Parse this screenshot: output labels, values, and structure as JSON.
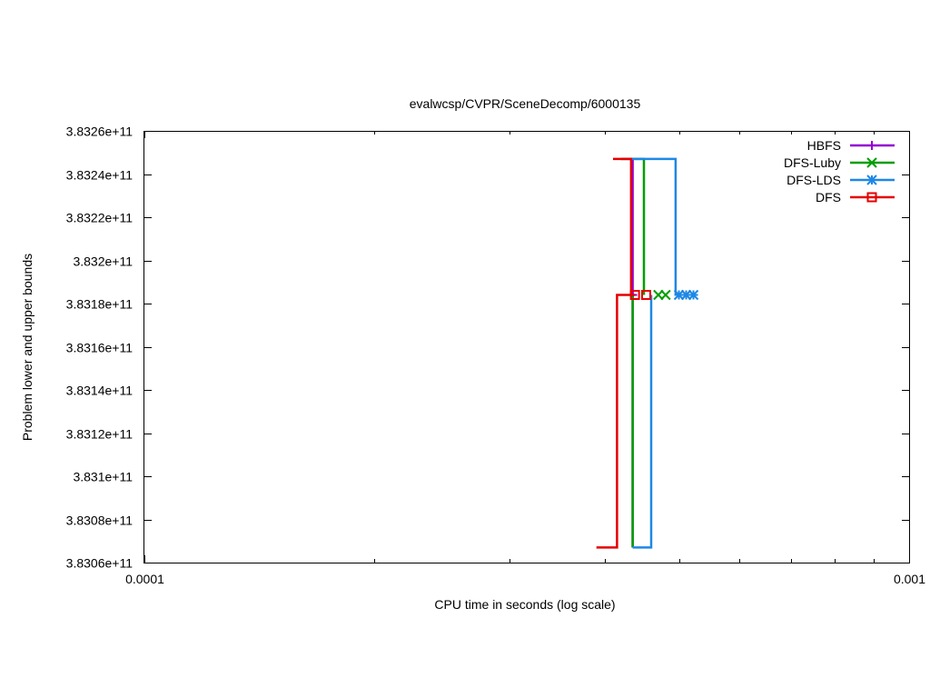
{
  "chart_data": {
    "type": "line",
    "title": "evalwcsp/CVPR/SceneDecomp/6000135",
    "xlabel": "CPU time in seconds (log scale)",
    "ylabel": "Problem lower and upper bounds",
    "x_scale": "log",
    "xlim": [
      0.0001,
      0.001
    ],
    "ylim": [
      383060000000,
      383260000000
    ],
    "x_ticks": [
      {
        "value": 0.0001,
        "label": "0.0001"
      },
      {
        "value": 0.001,
        "label": "0.001"
      }
    ],
    "y_ticks": [
      {
        "value": 383060000000,
        "label": "3.8306e+11"
      },
      {
        "value": 383080000000,
        "label": "3.8308e+11"
      },
      {
        "value": 383100000000,
        "label": "3.831e+11"
      },
      {
        "value": 383120000000,
        "label": "3.8312e+11"
      },
      {
        "value": 383140000000,
        "label": "3.8314e+11"
      },
      {
        "value": 383160000000,
        "label": "3.8316e+11"
      },
      {
        "value": 383180000000,
        "label": "3.8318e+11"
      },
      {
        "value": 383200000000,
        "label": "3.832e+11"
      },
      {
        "value": 383220000000,
        "label": "3.8322e+11"
      },
      {
        "value": 383240000000,
        "label": "3.8324e+11"
      },
      {
        "value": 383260000000,
        "label": "3.8326e+11"
      }
    ],
    "grid": false,
    "legend_position": "top-right",
    "series": [
      {
        "name": "HBFS",
        "color": "#9400d3",
        "marker": "plus",
        "lower": [
          [
            0.000435,
            383067000000
          ],
          [
            0.000435,
            383184000000
          ]
        ],
        "upper": [
          [
            0.000435,
            383247000000
          ],
          [
            0.000435,
            383184000000
          ]
        ],
        "final": [
          0.000435,
          383184000000
        ]
      },
      {
        "name": "DFS-Luby",
        "color": "#009e00",
        "marker": "cross",
        "lower": [
          [
            0.000435,
            383067000000
          ],
          [
            0.000435,
            383184000000
          ]
        ],
        "upper": [
          [
            0.00042,
            383247000000
          ],
          [
            0.00045,
            383247000000
          ],
          [
            0.00045,
            383184000000
          ]
        ],
        "final": [
          0.00047,
          383184000000
        ]
      },
      {
        "name": "DFS-LDS",
        "color": "#1e88e5",
        "marker": "star",
        "lower": [
          [
            0.000435,
            383067000000
          ],
          [
            0.00046,
            383067000000
          ],
          [
            0.00046,
            383184000000
          ]
        ],
        "upper": [
          [
            0.00042,
            383247000000
          ],
          [
            0.000495,
            383247000000
          ],
          [
            0.000495,
            383184000000
          ]
        ],
        "final": [
          0.0005,
          383184000000
        ]
      },
      {
        "name": "DFS",
        "color": "#e50000",
        "marker": "square",
        "lower": [
          [
            0.00039,
            383067000000
          ],
          [
            0.000415,
            383067000000
          ],
          [
            0.000415,
            383184000000
          ],
          [
            0.000438,
            383184000000
          ]
        ],
        "upper": [
          [
            0.00041,
            383247000000
          ],
          [
            0.000433,
            383247000000
          ],
          [
            0.000433,
            383184000000
          ]
        ],
        "final": [
          0.000438,
          383184000000
        ],
        "final2": [
          0.000453,
          383184000000
        ]
      }
    ]
  }
}
